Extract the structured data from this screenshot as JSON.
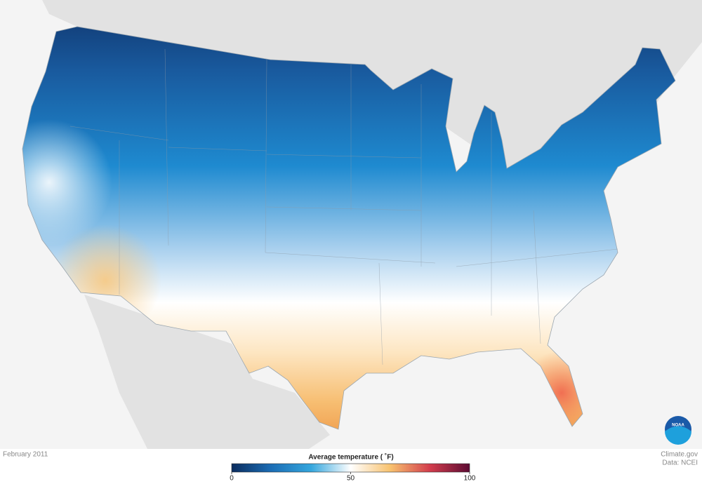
{
  "date": "February 2011",
  "legend": {
    "title": "Average temperature ( ˚F)",
    "min": 0,
    "max": 100,
    "ticks": [
      0,
      50,
      100
    ],
    "colors": [
      "#0b2c5e",
      "#1b6db5",
      "#34a6dd",
      "#ffffff",
      "#f8c26f",
      "#d23c4c",
      "#5c0b33"
    ]
  },
  "credit": {
    "site": "Climate.gov",
    "source": "Data: NCEI"
  },
  "logo": "NOAA"
}
